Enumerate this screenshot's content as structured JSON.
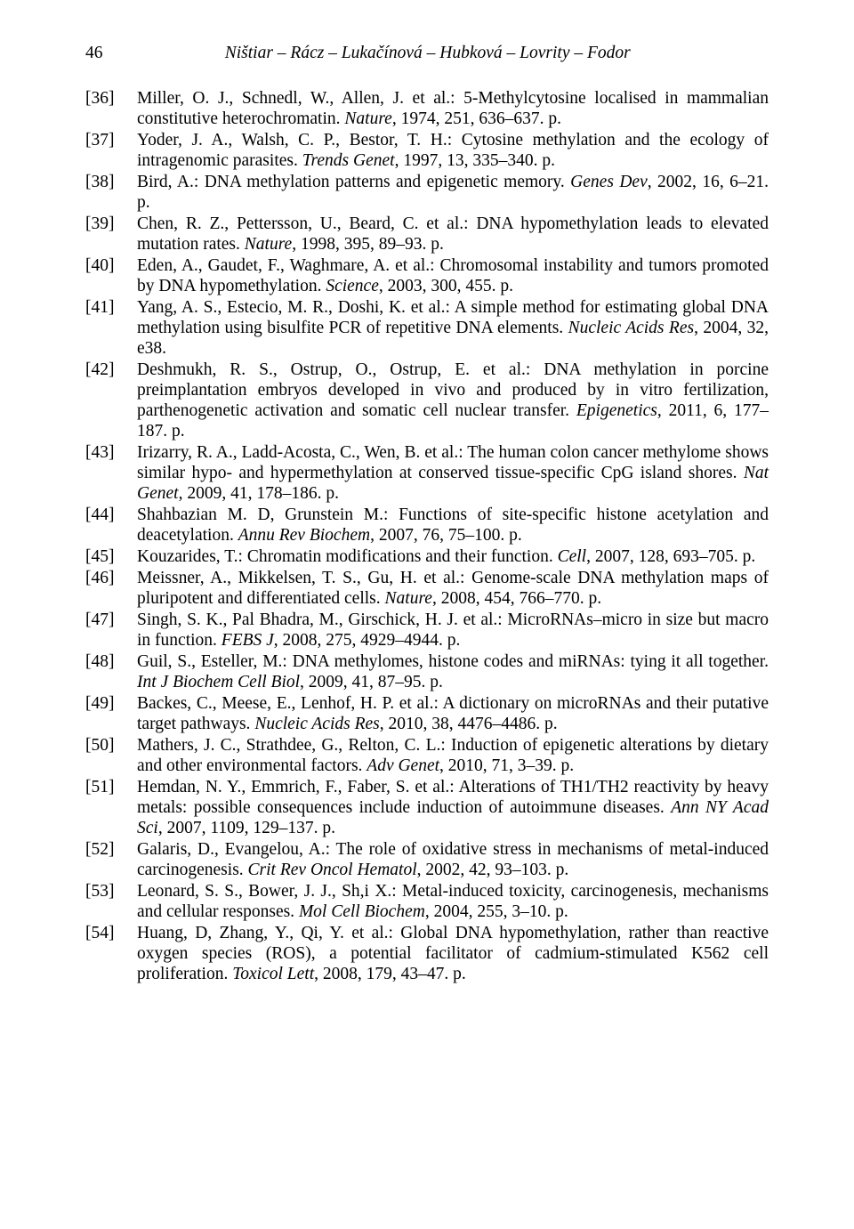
{
  "page": {
    "number": "46",
    "running_head": "Ništiar – Rácz – Lukačínová – Hubková – Lovrity – Fodor"
  },
  "font": {
    "family": "Times New Roman",
    "size_pt": 12,
    "color": "#000000",
    "background": "#ffffff"
  },
  "references": [
    {
      "num": "[36]",
      "segs": [
        {
          "t": "Miller, O. J., Schnedl, W., Allen, J. et al.: 5-Methylcytosine localised in mammalian constitutive heterochromatin. "
        },
        {
          "t": "Nature",
          "i": true
        },
        {
          "t": ", 1974, 251, 636–637. p."
        }
      ]
    },
    {
      "num": "[37]",
      "segs": [
        {
          "t": "Yoder, J. A., Walsh, C. P., Bestor, T. H.: Cytosine methylation and the ecology of intragenomic parasites. "
        },
        {
          "t": "Trends Genet",
          "i": true
        },
        {
          "t": ", 1997, 13, 335–340. p."
        }
      ]
    },
    {
      "num": "[38]",
      "segs": [
        {
          "t": "Bird, A.: DNA methylation patterns and epigenetic memory. "
        },
        {
          "t": "Genes Dev",
          "i": true
        },
        {
          "t": ", 2002, 16, 6–21. p."
        }
      ]
    },
    {
      "num": "[39]",
      "segs": [
        {
          "t": "Chen, R. Z., Pettersson, U., Beard, C. et al.: DNA hypomethylation leads to elevated mutation rates. "
        },
        {
          "t": "Nature",
          "i": true
        },
        {
          "t": ", 1998, 395, 89–93. p."
        }
      ]
    },
    {
      "num": "[40]",
      "segs": [
        {
          "t": "Eden, A., Gaudet, F., Waghmare, A. et al.: Chromosomal instability and tumors promoted by DNA hypomethylation. "
        },
        {
          "t": "Science",
          "i": true
        },
        {
          "t": ", 2003, 300, 455. p."
        }
      ]
    },
    {
      "num": "[41]",
      "segs": [
        {
          "t": "Yang, A. S., Estecio, M. R., Doshi, K. et al.: A simple method for estimating global DNA methylation using bisulfite PCR of repetitive DNA elements. "
        },
        {
          "t": "Nucleic Acids Res",
          "i": true
        },
        {
          "t": ", 2004, 32, e38."
        }
      ]
    },
    {
      "num": "[42]",
      "segs": [
        {
          "t": "Deshmukh, R. S., Ostrup, O., Ostrup, E. et al.: DNA methylation in porcine preimplantation embryos developed in vivo and produced by in vitro fertilization, parthenogenetic activation and somatic cell nuclear transfer. "
        },
        {
          "t": "Epigenetics",
          "i": true
        },
        {
          "t": ", 2011, 6, 177–187. p."
        }
      ]
    },
    {
      "num": "[43]",
      "segs": [
        {
          "t": "Irizarry, R. A., Ladd-Acosta, C., Wen, B. et al.: The human colon cancer methylome shows similar hypo- and hypermethylation at conserved tissue-specific CpG island shores. "
        },
        {
          "t": "Nat Genet",
          "i": true
        },
        {
          "t": ", 2009, 41, 178–186. p."
        }
      ]
    },
    {
      "num": "[44]",
      "segs": [
        {
          "t": "Shahbazian M. D, Grunstein M.: Functions of site-specific histone acetylation and deacetylation. "
        },
        {
          "t": "Annu Rev Biochem",
          "i": true
        },
        {
          "t": ", 2007, 76, 75–100. p."
        }
      ]
    },
    {
      "num": "[45]",
      "segs": [
        {
          "t": "Kouzarides, T.: Chromatin modifications and their function. "
        },
        {
          "t": "Cell",
          "i": true
        },
        {
          "t": ", 2007, 128, 693–705. p."
        }
      ]
    },
    {
      "num": "[46]",
      "segs": [
        {
          "t": "Meissner, A., Mikkelsen, T. S., Gu, H. et al.: Genome-scale DNA methylation maps of pluripotent and differentiated cells. "
        },
        {
          "t": "Nature",
          "i": true
        },
        {
          "t": ", 2008, 454, 766–770. p."
        }
      ]
    },
    {
      "num": "[47]",
      "segs": [
        {
          "t": "Singh, S. K., Pal Bhadra, M., Girschick, H. J. et al.: MicroRNAs–micro in size but macro in function. "
        },
        {
          "t": "FEBS J",
          "i": true
        },
        {
          "t": ", 2008, 275, 4929–4944. p."
        }
      ]
    },
    {
      "num": "[48]",
      "segs": [
        {
          "t": "Guil, S., Esteller, M.: DNA methylomes, histone codes and miRNAs: tying it all together. "
        },
        {
          "t": "Int J Biochem Cell Biol",
          "i": true
        },
        {
          "t": ", 2009, 41, 87–95. p."
        }
      ]
    },
    {
      "num": "[49]",
      "segs": [
        {
          "t": "Backes, C., Meese, E., Lenhof, H. P. et al.: A dictionary on microRNAs and their putative target pathways. "
        },
        {
          "t": "Nucleic Acids Res",
          "i": true
        },
        {
          "t": ", 2010, 38, 4476–4486. p."
        }
      ]
    },
    {
      "num": "[50]",
      "segs": [
        {
          "t": "Mathers, J. C., Strathdee, G., Relton, C. L.: Induction of epigenetic alterations by dietary and other environmental factors. "
        },
        {
          "t": "Adv Genet",
          "i": true
        },
        {
          "t": ", 2010, 71, 3–39. p."
        }
      ]
    },
    {
      "num": "[51]",
      "segs": [
        {
          "t": "Hemdan, N. Y., Emmrich, F., Faber, S. et al.: Alterations of TH1/TH2 reactivity by heavy metals: possible consequences include induction of autoimmune diseases. "
        },
        {
          "t": "Ann NY Acad Sci",
          "i": true
        },
        {
          "t": ", 2007, 1109, 129–137. p."
        }
      ]
    },
    {
      "num": "[52]",
      "segs": [
        {
          "t": "Galaris, D., Evangelou, A.: The role of oxidative stress in mechanisms of metal-induced carcinogenesis. "
        },
        {
          "t": "Crit Rev Oncol Hematol",
          "i": true
        },
        {
          "t": ", 2002, 42, 93–103. p."
        }
      ]
    },
    {
      "num": "[53]",
      "segs": [
        {
          "t": "Leonard, S. S., Bower, J. J., Sh,i X.: Metal-induced toxicity, carcinogenesis, mechanisms and cellular responses. "
        },
        {
          "t": "Mol Cell Biochem",
          "i": true
        },
        {
          "t": ", 2004, 255, 3–10. p."
        }
      ]
    },
    {
      "num": "[54]",
      "segs": [
        {
          "t": "Huang, D, Zhang, Y., Qi, Y. et al.: Global DNA hypomethylation, rather than reactive oxygen species (ROS), a potential facilitator of cadmium-stimulated K562 cell proliferation. "
        },
        {
          "t": "Toxicol Lett",
          "i": true
        },
        {
          "t": ", 2008, 179, 43–47. p."
        }
      ]
    }
  ]
}
